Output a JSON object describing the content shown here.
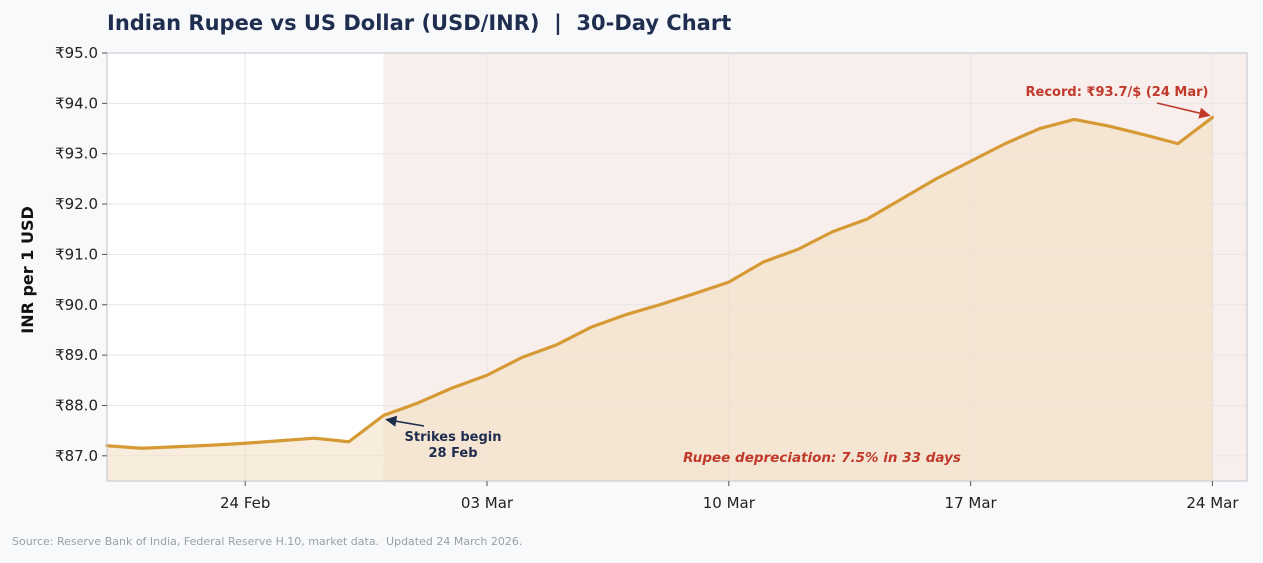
{
  "chart_data": {
    "type": "line",
    "title": "Indian Rupee vs US Dollar (USD/INR)  |  30-Day Chart",
    "xlabel": "",
    "ylabel": "INR per 1 USD",
    "ylim": [
      86.5,
      95.0
    ],
    "xlim": [
      "2026-02-20",
      "2026-03-25"
    ],
    "y_tick_labels": [
      "₹87.0",
      "₹88.0",
      "₹89.0",
      "₹90.0",
      "₹91.0",
      "₹92.0",
      "₹93.0",
      "₹94.0",
      "₹95.0"
    ],
    "y_ticks": [
      87,
      88,
      89,
      90,
      91,
      92,
      93,
      94,
      95
    ],
    "x_tick_labels": [
      "24 Feb",
      "03 Mar",
      "10 Mar",
      "17 Mar",
      "24 Mar"
    ],
    "x_ticks": [
      "2026-02-24",
      "2026-03-03",
      "2026-03-10",
      "2026-03-17",
      "2026-03-24"
    ],
    "grid": true,
    "shaded_region": {
      "from": "2026-02-28",
      "to": "2026-03-25"
    },
    "series": [
      {
        "color": "#d69a35",
        "x": [
          "2026-02-20",
          "2026-02-21",
          "2026-02-22",
          "2026-02-23",
          "2026-02-24",
          "2026-02-25",
          "2026-02-26",
          "2026-02-27",
          "2026-02-28",
          "2026-03-01",
          "2026-03-02",
          "2026-03-03",
          "2026-03-04",
          "2026-03-05",
          "2026-03-06",
          "2026-03-07",
          "2026-03-08",
          "2026-03-09",
          "2026-03-10",
          "2026-03-11",
          "2026-03-12",
          "2026-03-13",
          "2026-03-14",
          "2026-03-15",
          "2026-03-16",
          "2026-03-17",
          "2026-03-18",
          "2026-03-19",
          "2026-03-20",
          "2026-03-21",
          "2026-03-22",
          "2026-03-23",
          "2026-03-24"
        ],
        "values": [
          87.2,
          87.15,
          87.18,
          87.21,
          87.25,
          87.3,
          87.35,
          87.28,
          87.8,
          88.05,
          88.35,
          88.6,
          88.95,
          89.2,
          89.55,
          89.8,
          90.0,
          90.22,
          90.45,
          90.85,
          91.1,
          91.45,
          91.7,
          92.1,
          92.5,
          92.85,
          93.2,
          93.5,
          93.68,
          93.55,
          93.38,
          93.2,
          93.72
        ]
      }
    ],
    "annotations": [
      {
        "text": "Record: ₹93.7/$ (24 Mar)",
        "x": "2026-03-24",
        "y": 93.72,
        "color": "#c0392b"
      },
      {
        "text": [
          "Strikes begin",
          "28 Feb"
        ],
        "x": "2026-02-28",
        "y": 87.8,
        "color": "#1f2d4e"
      },
      {
        "text": "Rupee depreciation: 7.5% in 33 days",
        "color": "#c0392b"
      }
    ],
    "source": "Source: Reserve Bank of India, Federal Reserve H.10, market data.  Updated 24 March 2026."
  },
  "colors": {
    "line": "#d69a35",
    "fill": "#f3dfc0",
    "shade": "#f6e8e6",
    "title": "#1f2d4e",
    "accent_red": "#c0392b"
  }
}
